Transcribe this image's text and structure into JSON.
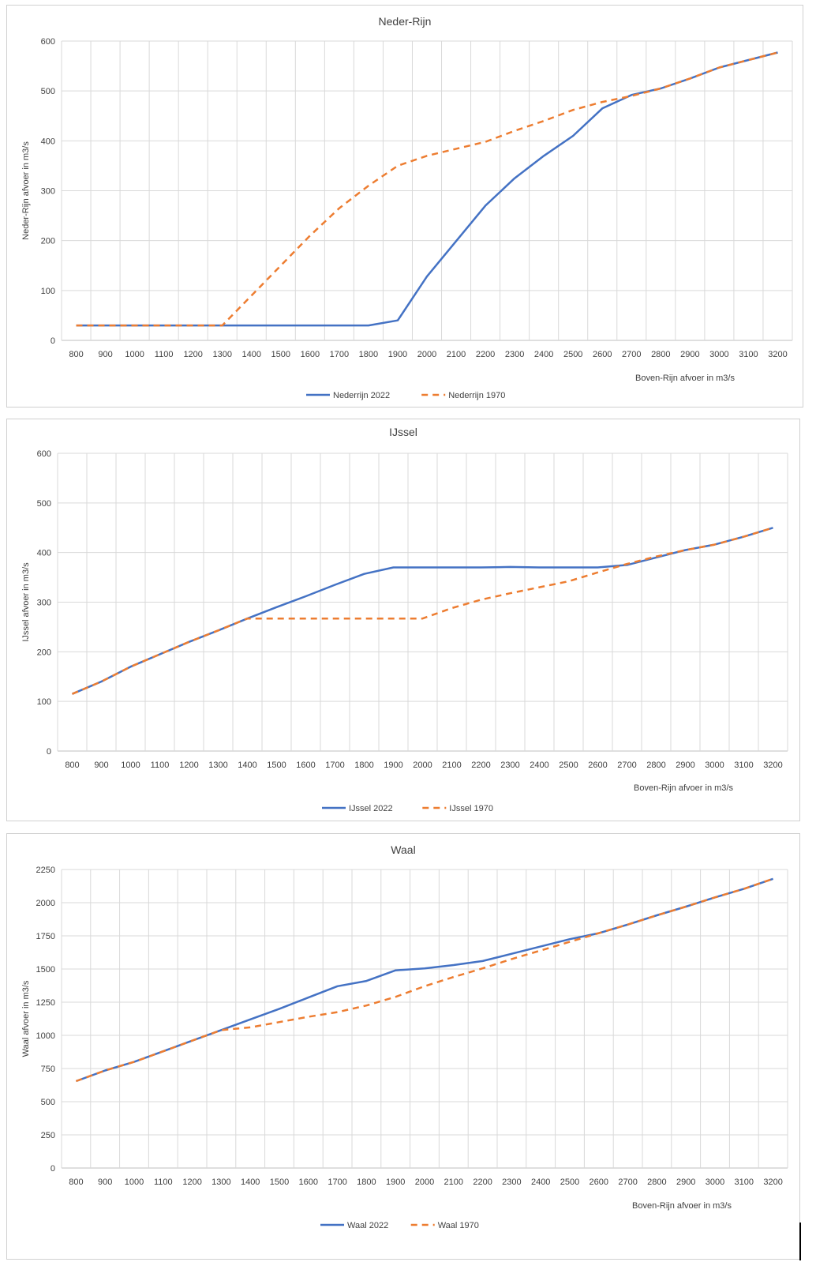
{
  "colors": {
    "series_2022": "#4472C4",
    "series_1970": "#ED7D31"
  },
  "chart_data": [
    {
      "type": "line",
      "title": "Neder-Rijn",
      "xlabel": "Boven-Rijn afvoer in m3/s",
      "ylabel": "Neder-Rijn afvoer in m3/s",
      "categories": [
        "800",
        "900",
        "1000",
        "1100",
        "1200",
        "1300",
        "1400",
        "1500",
        "1600",
        "1700",
        "1800",
        "1900",
        "2000",
        "2100",
        "2200",
        "2300",
        "2400",
        "2500",
        "2600",
        "2700",
        "2800",
        "2900",
        "3000",
        "3100",
        "3200"
      ],
      "ylim": [
        0,
        600
      ],
      "yticks": [
        "0",
        "100",
        "200",
        "300",
        "400",
        "500",
        "600"
      ],
      "grid": true,
      "legend_position": "bottom",
      "series": [
        {
          "name": "Nederrijn 2022",
          "style": "solid",
          "x": [
            800,
            1800,
            1900,
            2000,
            2200,
            2300,
            2400,
            2500,
            2600,
            2700,
            2800,
            2900,
            3000,
            3100,
            3200
          ],
          "values": [
            30,
            30,
            40,
            128,
            270,
            325,
            370,
            410,
            465,
            492,
            505,
            525,
            547,
            562,
            577
          ]
        },
        {
          "name": "Nederrijn 1970",
          "style": "dashed",
          "x": [
            800,
            1300,
            1400,
            1500,
            1600,
            1700,
            1800,
            1900,
            2000,
            2200,
            2300,
            2400,
            2500,
            2600,
            2700,
            2800,
            2900,
            3000,
            3100,
            3200
          ],
          "values": [
            30,
            30,
            90,
            150,
            210,
            265,
            310,
            350,
            370,
            398,
            420,
            440,
            462,
            478,
            490,
            505,
            525,
            547,
            562,
            577
          ]
        }
      ]
    },
    {
      "type": "line",
      "title": "IJssel",
      "xlabel": "Boven-Rijn afvoer in m3/s",
      "ylabel": "IJssel afvoer in m3/s",
      "categories": [
        "800",
        "900",
        "1000",
        "1100",
        "1200",
        "1300",
        "1400",
        "1500",
        "1600",
        "1700",
        "1800",
        "1900",
        "2000",
        "2100",
        "2200",
        "2300",
        "2400",
        "2500",
        "2600",
        "2700",
        "2800",
        "2900",
        "3000",
        "3100",
        "3200"
      ],
      "ylim": [
        0,
        600
      ],
      "yticks": [
        "0",
        "100",
        "200",
        "300",
        "400",
        "500",
        "600"
      ],
      "grid": true,
      "legend_position": "bottom",
      "series": [
        {
          "name": "IJssel 2022",
          "style": "solid",
          "x": [
            800,
            900,
            1000,
            1100,
            1200,
            1300,
            1400,
            1500,
            1600,
            1700,
            1800,
            1900,
            2000,
            2100,
            2200,
            2300,
            2400,
            2500,
            2600,
            2700,
            2800,
            2900,
            3000,
            3100,
            3200
          ],
          "values": [
            115,
            140,
            170,
            195,
            220,
            243,
            267,
            290,
            312,
            335,
            357,
            370,
            370,
            370,
            370,
            371,
            370,
            370,
            370,
            375,
            390,
            405,
            416,
            432,
            450
          ]
        },
        {
          "name": "IJssel 1970",
          "style": "dashed",
          "x": [
            800,
            900,
            1000,
            1100,
            1200,
            1300,
            1400,
            1500,
            1600,
            1700,
            1800,
            1900,
            2000,
            2100,
            2200,
            2300,
            2400,
            2500,
            2600,
            2700,
            2800,
            2900,
            3000,
            3100,
            3200
          ],
          "values": [
            115,
            140,
            170,
            195,
            220,
            243,
            267,
            267,
            267,
            267,
            267,
            267,
            267,
            288,
            305,
            318,
            330,
            342,
            360,
            377,
            392,
            405,
            416,
            432,
            450
          ]
        }
      ]
    },
    {
      "type": "line",
      "title": "Waal",
      "xlabel": "Boven-Rijn afvoer in m3/s",
      "ylabel": "Waal afvoer in m3/s",
      "categories": [
        "800",
        "900",
        "1000",
        "1100",
        "1200",
        "1300",
        "1400",
        "1500",
        "1600",
        "1700",
        "1800",
        "1900",
        "2000",
        "2100",
        "2200",
        "2300",
        "2400",
        "2500",
        "2600",
        "2700",
        "2800",
        "2900",
        "3000",
        "3100",
        "3200"
      ],
      "ylim": [
        0,
        2250
      ],
      "yticks": [
        "0",
        "250",
        "500",
        "750",
        "1000",
        "1250",
        "1500",
        "1750",
        "2000",
        "2250"
      ],
      "grid": true,
      "legend_position": "bottom",
      "series": [
        {
          "name": "Waal 2022",
          "style": "solid",
          "x": [
            800,
            900,
            1000,
            1100,
            1200,
            1300,
            1400,
            1500,
            1600,
            1700,
            1800,
            1900,
            2000,
            2100,
            2200,
            2300,
            2400,
            2500,
            2600,
            2700,
            2800,
            2900,
            3000,
            3100,
            3200
          ],
          "values": [
            655,
            735,
            800,
            880,
            960,
            1040,
            1120,
            1200,
            1285,
            1370,
            1410,
            1490,
            1505,
            1530,
            1560,
            1615,
            1670,
            1725,
            1770,
            1835,
            1905,
            1970,
            2040,
            2105,
            2180
          ]
        },
        {
          "name": "Waal 1970",
          "style": "dashed",
          "x": [
            800,
            900,
            1000,
            1100,
            1200,
            1300,
            1400,
            1500,
            1600,
            1700,
            1800,
            1900,
            2000,
            2100,
            2200,
            2300,
            2400,
            2500,
            2600,
            2700,
            2800,
            2900,
            3000,
            3100,
            3200
          ],
          "values": [
            655,
            735,
            800,
            880,
            960,
            1040,
            1060,
            1100,
            1140,
            1175,
            1225,
            1290,
            1370,
            1440,
            1505,
            1575,
            1640,
            1705,
            1770,
            1835,
            1905,
            1970,
            2040,
            2105,
            2180
          ]
        }
      ]
    }
  ]
}
